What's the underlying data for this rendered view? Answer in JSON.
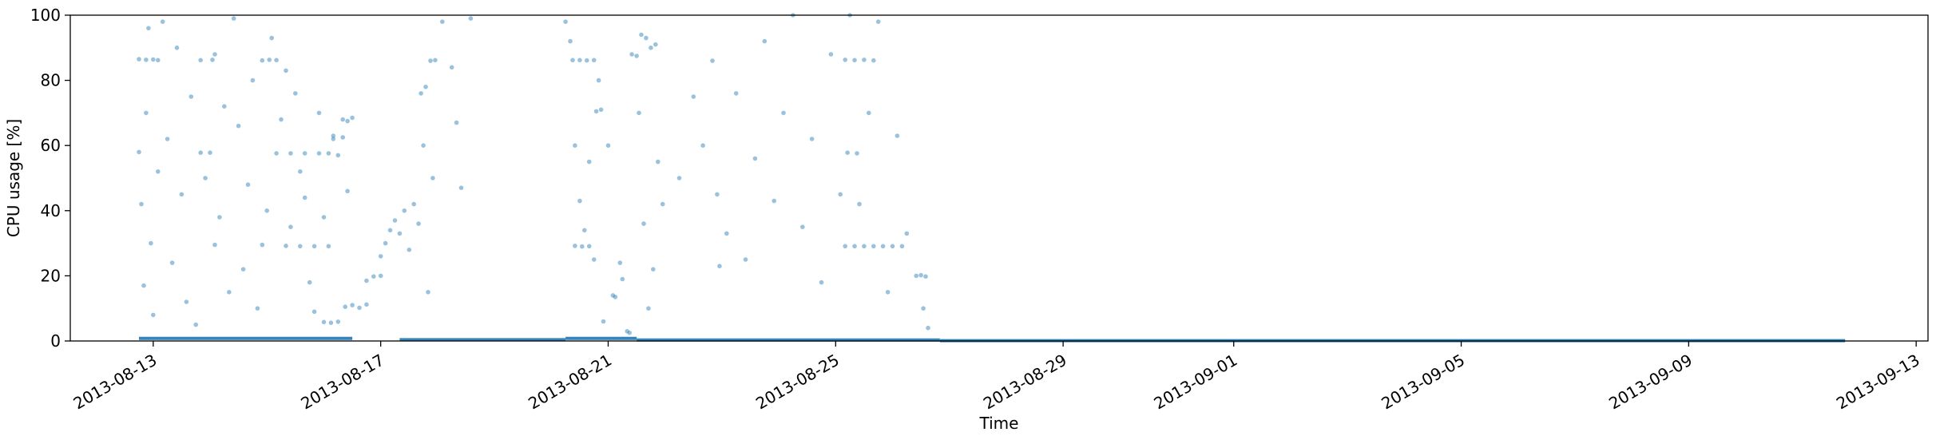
{
  "chart_data": {
    "type": "scatter",
    "title": "",
    "xlabel": "Time",
    "ylabel": "CPU usage [%]",
    "x_type": "date",
    "xlim": [
      "2013-08-11T13:00",
      "2013-09-13T05:00"
    ],
    "ylim": [
      0,
      100
    ],
    "x_ticks": [
      "2013-08-13",
      "2013-08-17",
      "2013-08-21",
      "2013-08-25",
      "2013-08-29",
      "2013-09-01",
      "2013-09-05",
      "2013-09-09",
      "2013-09-13"
    ],
    "y_ticks": [
      0,
      20,
      40,
      60,
      80,
      100
    ],
    "grid": false,
    "legend": "none",
    "marker_color": "#1f77b4",
    "marker_alpha": 0.45,
    "series": [
      {
        "points": [
          [
            "2013-08-12T18:00",
            86.5
          ],
          [
            "2013-08-12T21:00",
            86.3
          ],
          [
            "2013-08-13T00:00",
            86.4
          ],
          [
            "2013-08-13T02:00",
            86.2
          ],
          [
            "2013-08-13T20:00",
            86.2
          ],
          [
            "2013-08-14T01:00",
            86.3
          ],
          [
            "2013-08-14T22:00",
            86.1
          ],
          [
            "2013-08-15T01:00",
            86.3
          ],
          [
            "2013-08-15T04:00",
            86.2
          ],
          [
            "2013-08-13T20:00",
            57.8
          ],
          [
            "2013-08-14T00:00",
            57.8
          ],
          [
            "2013-08-15T04:00",
            57.6
          ],
          [
            "2013-08-15T10:00",
            57.6
          ],
          [
            "2013-08-15T16:00",
            57.6
          ],
          [
            "2013-08-15T22:00",
            57.6
          ],
          [
            "2013-08-16T02:00",
            57.6
          ],
          [
            "2013-08-14T02:00",
            29.5
          ],
          [
            "2013-08-14T22:00",
            29.5
          ],
          [
            "2013-08-15T08:00",
            29.2
          ],
          [
            "2013-08-15T14:00",
            29.1
          ],
          [
            "2013-08-15T20:00",
            29.1
          ],
          [
            "2013-08-16T02:00",
            29.1
          ],
          [
            "2013-08-12T18:00",
            58
          ],
          [
            "2013-08-12T19:00",
            42
          ],
          [
            "2013-08-12T20:00",
            17
          ],
          [
            "2013-08-12T21:00",
            70
          ],
          [
            "2013-08-12T22:00",
            96
          ],
          [
            "2013-08-12T23:00",
            30
          ],
          [
            "2013-08-13T00:00",
            8
          ],
          [
            "2013-08-13T02:00",
            52
          ],
          [
            "2013-08-13T04:00",
            98
          ],
          [
            "2013-08-13T06:00",
            62
          ],
          [
            "2013-08-13T08:00",
            24
          ],
          [
            "2013-08-13T10:00",
            90
          ],
          [
            "2013-08-13T12:00",
            45
          ],
          [
            "2013-08-13T14:00",
            12
          ],
          [
            "2013-08-13T16:00",
            75
          ],
          [
            "2013-08-13T18:00",
            5
          ],
          [
            "2013-08-13T22:00",
            50
          ],
          [
            "2013-08-14T02:00",
            88
          ],
          [
            "2013-08-14T04:00",
            38
          ],
          [
            "2013-08-14T06:00",
            72
          ],
          [
            "2013-08-14T08:00",
            15
          ],
          [
            "2013-08-14T10:00",
            99
          ],
          [
            "2013-08-14T12:00",
            66
          ],
          [
            "2013-08-14T14:00",
            22
          ],
          [
            "2013-08-14T16:00",
            48
          ],
          [
            "2013-08-14T18:00",
            80
          ],
          [
            "2013-08-14T20:00",
            10
          ],
          [
            "2013-08-15T00:00",
            40
          ],
          [
            "2013-08-15T02:00",
            93
          ],
          [
            "2013-08-15T06:00",
            68
          ],
          [
            "2013-08-15T08:00",
            83
          ],
          [
            "2013-08-15T10:00",
            35
          ],
          [
            "2013-08-15T12:00",
            76
          ],
          [
            "2013-08-15T14:00",
            52
          ],
          [
            "2013-08-15T16:00",
            44
          ],
          [
            "2013-08-15T18:00",
            18
          ],
          [
            "2013-08-15T20:00",
            9
          ],
          [
            "2013-08-15T22:00",
            70
          ],
          [
            "2013-08-16T00:00",
            38
          ],
          [
            "2013-08-16T04:00",
            62
          ],
          [
            "2013-08-16T06:00",
            57
          ],
          [
            "2013-08-16T08:00",
            68
          ],
          [
            "2013-08-16T10:00",
            46
          ],
          [
            "2013-08-16T00:00",
            5.8
          ],
          [
            "2013-08-16T03:00",
            5.6
          ],
          [
            "2013-08-16T06:00",
            5.9
          ],
          [
            "2013-08-16T09:00",
            10.5
          ],
          [
            "2013-08-16T12:00",
            11
          ],
          [
            "2013-08-16T15:00",
            10.2
          ],
          [
            "2013-08-16T18:00",
            11.2
          ],
          [
            "2013-08-16T18:00",
            18.5
          ],
          [
            "2013-08-16T21:00",
            19.8
          ],
          [
            "2013-08-17T00:00",
            20
          ],
          [
            "2013-08-16T04:00",
            63
          ],
          [
            "2013-08-16T08:00",
            62.5
          ],
          [
            "2013-08-16T10:00",
            67.5
          ],
          [
            "2013-08-16T12:00",
            68.5
          ],
          [
            "2013-08-17T00:00",
            26
          ],
          [
            "2013-08-17T02:00",
            30
          ],
          [
            "2013-08-17T04:00",
            34
          ],
          [
            "2013-08-17T06:00",
            37
          ],
          [
            "2013-08-17T08:00",
            33
          ],
          [
            "2013-08-17T10:00",
            40
          ],
          [
            "2013-08-17T12:00",
            28
          ],
          [
            "2013-08-17T14:00",
            42
          ],
          [
            "2013-08-17T16:00",
            36
          ],
          [
            "2013-08-17T17:00",
            76
          ],
          [
            "2013-08-17T19:00",
            78
          ],
          [
            "2013-08-17T21:00",
            86
          ],
          [
            "2013-08-17T23:00",
            86.2
          ],
          [
            "2013-08-17T18:00",
            60
          ],
          [
            "2013-08-17T22:00",
            50
          ],
          [
            "2013-08-17T20:00",
            15
          ],
          [
            "2013-08-18T02:00",
            98
          ],
          [
            "2013-08-18T06:00",
            84
          ],
          [
            "2013-08-18T08:00",
            67
          ],
          [
            "2013-08-18T10:00",
            47
          ],
          [
            "2013-08-18T14:00",
            99
          ],
          [
            "2013-08-20T06:00",
            98
          ],
          [
            "2013-08-20T08:00",
            92
          ],
          [
            "2013-08-20T10:00",
            60
          ],
          [
            "2013-08-20T12:00",
            43
          ],
          [
            "2013-08-20T14:00",
            34
          ],
          [
            "2013-08-20T16:00",
            55
          ],
          [
            "2013-08-20T18:00",
            25
          ],
          [
            "2013-08-20T20:00",
            80
          ],
          [
            "2013-08-20T22:00",
            6
          ],
          [
            "2013-08-20T09:00",
            86.2
          ],
          [
            "2013-08-20T12:00",
            86.2
          ],
          [
            "2013-08-20T15:00",
            86.1
          ],
          [
            "2013-08-20T18:00",
            86.2
          ],
          [
            "2013-08-20T10:00",
            29.2
          ],
          [
            "2013-08-20T13:00",
            29
          ],
          [
            "2013-08-20T16:00",
            29.1
          ],
          [
            "2013-08-20T19:00",
            70.5
          ],
          [
            "2013-08-20T21:00",
            71
          ],
          [
            "2013-08-21T00:00",
            60
          ],
          [
            "2013-08-21T02:00",
            14
          ],
          [
            "2013-08-21T03:00",
            13.5
          ],
          [
            "2013-08-21T05:00",
            24
          ],
          [
            "2013-08-21T06:00",
            19
          ],
          [
            "2013-08-21T08:00",
            3
          ],
          [
            "2013-08-21T09:00",
            2.5
          ],
          [
            "2013-08-21T10:00",
            88
          ],
          [
            "2013-08-21T12:00",
            87.5
          ],
          [
            "2013-08-21T14:00",
            94
          ],
          [
            "2013-08-21T16:00",
            93
          ],
          [
            "2013-08-21T18:00",
            90
          ],
          [
            "2013-08-21T20:00",
            91
          ],
          [
            "2013-08-21T13:00",
            70
          ],
          [
            "2013-08-21T15:00",
            36
          ],
          [
            "2013-08-21T17:00",
            10
          ],
          [
            "2013-08-21T19:00",
            22
          ],
          [
            "2013-08-21T21:00",
            55
          ],
          [
            "2013-08-21T23:00",
            42
          ],
          [
            "2013-08-22T06:00",
            50
          ],
          [
            "2013-08-22T12:00",
            75
          ],
          [
            "2013-08-22T16:00",
            60
          ],
          [
            "2013-08-22T20:00",
            86
          ],
          [
            "2013-08-22T22:00",
            45
          ],
          [
            "2013-08-22T23:00",
            23
          ],
          [
            "2013-08-23T02:00",
            33
          ],
          [
            "2013-08-23T06:00",
            76
          ],
          [
            "2013-08-23T10:00",
            25
          ],
          [
            "2013-08-23T14:00",
            56
          ],
          [
            "2013-08-23T18:00",
            92
          ],
          [
            "2013-08-23T22:00",
            43
          ],
          [
            "2013-08-24T02:00",
            70
          ],
          [
            "2013-08-24T06:00",
            100
          ],
          [
            "2013-08-24T10:00",
            35
          ],
          [
            "2013-08-24T14:00",
            62
          ],
          [
            "2013-08-24T18:00",
            18
          ],
          [
            "2013-08-24T22:00",
            88
          ],
          [
            "2013-08-25T02:00",
            45
          ],
          [
            "2013-08-25T06:00",
            100
          ],
          [
            "2013-08-25T04:00",
            86.3
          ],
          [
            "2013-08-25T08:00",
            86.2
          ],
          [
            "2013-08-25T12:00",
            86.3
          ],
          [
            "2013-08-25T16:00",
            86.1
          ],
          [
            "2013-08-25T05:00",
            57.8
          ],
          [
            "2013-08-25T09:00",
            57.6
          ],
          [
            "2013-08-25T04:00",
            29.1
          ],
          [
            "2013-08-25T08:00",
            29.1
          ],
          [
            "2013-08-25T12:00",
            29.1
          ],
          [
            "2013-08-25T16:00",
            29.1
          ],
          [
            "2013-08-25T20:00",
            29.1
          ],
          [
            "2013-08-26T00:00",
            29.1
          ],
          [
            "2013-08-26T04:00",
            29.1
          ],
          [
            "2013-08-25T10:00",
            42
          ],
          [
            "2013-08-25T14:00",
            70
          ],
          [
            "2013-08-25T18:00",
            98
          ],
          [
            "2013-08-25T22:00",
            15
          ],
          [
            "2013-08-26T02:00",
            63
          ],
          [
            "2013-08-26T06:00",
            33
          ],
          [
            "2013-08-26T10:00",
            20
          ],
          [
            "2013-08-26T12:00",
            20.2
          ],
          [
            "2013-08-26T14:00",
            19.8
          ],
          [
            "2013-08-26T13:00",
            10
          ],
          [
            "2013-08-26T15:00",
            4
          ]
        ],
        "baseline_segments": [
          [
            "2013-08-12T18:00",
            "2013-08-16T12:00",
            0.8
          ],
          [
            "2013-08-17T08:00",
            "2013-08-20T06:00",
            0.4
          ],
          [
            "2013-08-20T06:00",
            "2013-08-21T12:00",
            0.8
          ],
          [
            "2013-08-21T12:00",
            "2013-08-26T20:00",
            0.3
          ],
          [
            "2013-08-26T20:00",
            "2013-09-11T18:00",
            0.1
          ]
        ]
      }
    ]
  }
}
